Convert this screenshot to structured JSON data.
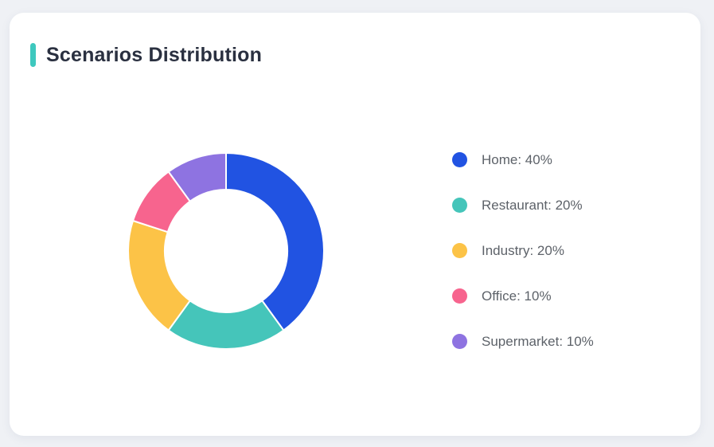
{
  "header": {
    "title": "Scenarios Distribution",
    "accent_color": "#3EC8BE"
  },
  "chart_data": {
    "type": "pie",
    "subtype": "donut",
    "title": "Scenarios Distribution",
    "categories": [
      "Home",
      "Restaurant",
      "Industry",
      "Office",
      "Supermarket"
    ],
    "values": [
      40,
      20,
      20,
      10,
      10
    ],
    "unit": "%",
    "colors": [
      "#2153E2",
      "#45C5BA",
      "#FCC347",
      "#F7648E",
      "#8E73E1"
    ],
    "start_angle": "top",
    "direction": "clockwise",
    "legend_position": "right",
    "legend": [
      {
        "label": "Home: 40%",
        "color": "#2153E2"
      },
      {
        "label": "Restaurant: 20%",
        "color": "#45C5BA"
      },
      {
        "label": "Industry: 20%",
        "color": "#FCC347"
      },
      {
        "label": "Office: 10%",
        "color": "#F7648E"
      },
      {
        "label": "Supermarket: 10%",
        "color": "#8E73E1"
      }
    ]
  }
}
